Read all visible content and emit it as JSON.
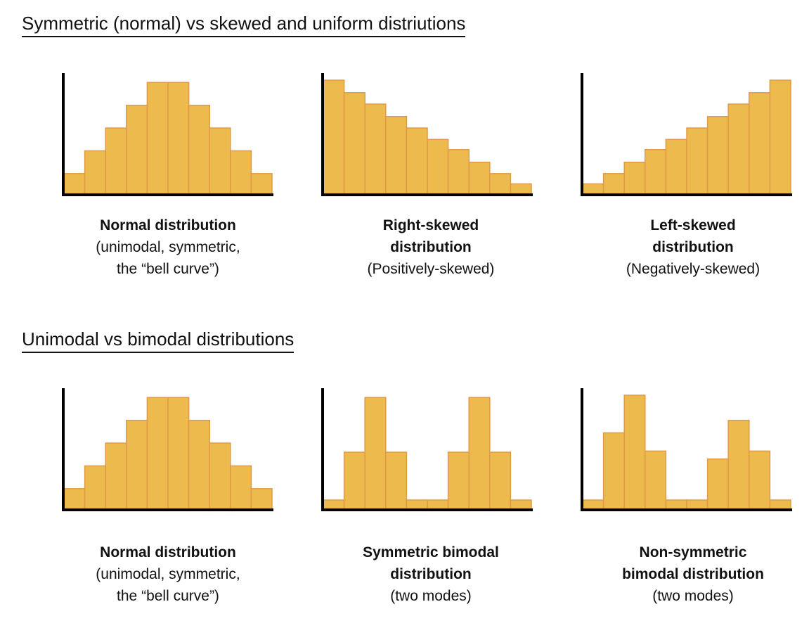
{
  "sections": [
    {
      "title": "Symmetric (normal) vs skewed and uniform distriutions"
    },
    {
      "title": "Unimodal vs bimodal distributions"
    }
  ],
  "bar_color": "#EDBA4E",
  "bar_stroke": "#E09A46",
  "axis_color": "#000000",
  "chart_data": [
    {
      "type": "bar",
      "title": "",
      "caption": {
        "bold": "Normal distribution",
        "sub": "(unimodal, symmetric,\nthe “bell curve”)"
      },
      "values": [
        18,
        38,
        58,
        78,
        98,
        98,
        78,
        58,
        38,
        18
      ],
      "ylim": [
        0,
        100
      ],
      "axes_ticks": false,
      "grid": false
    },
    {
      "type": "bar",
      "title": "",
      "caption": {
        "bold": "Right-skewed\ndistribution",
        "sub": "(Positively-skewed)"
      },
      "values": [
        100,
        89,
        79,
        68,
        58,
        48,
        39,
        28,
        18,
        9
      ],
      "ylim": [
        0,
        100
      ],
      "axes_ticks": false,
      "grid": false
    },
    {
      "type": "bar",
      "title": "",
      "caption": {
        "bold": "Left-skewed\ndistribution",
        "sub": "(Negatively-skewed)"
      },
      "values": [
        9,
        18,
        28,
        39,
        48,
        58,
        68,
        79,
        89,
        100
      ],
      "ylim": [
        0,
        100
      ],
      "axes_ticks": false,
      "grid": false
    },
    {
      "type": "bar",
      "title": "",
      "caption": {
        "bold": "Normal distribution",
        "sub": "(unimodal, symmetric,\nthe “bell curve”)"
      },
      "values": [
        18,
        38,
        58,
        78,
        98,
        98,
        78,
        58,
        38,
        18
      ],
      "ylim": [
        0,
        100
      ],
      "axes_ticks": false,
      "grid": false
    },
    {
      "type": "bar",
      "title": "",
      "caption": {
        "bold": "Symmetric bimodal\ndistribution",
        "sub": "(two modes)"
      },
      "values": [
        8,
        50,
        98,
        50,
        8,
        8,
        50,
        98,
        50,
        8
      ],
      "ylim": [
        0,
        100
      ],
      "axes_ticks": false,
      "grid": false
    },
    {
      "type": "bar",
      "title": "",
      "caption": {
        "bold": "Non-symmetric\nbimodal distribution",
        "sub": "(two modes)"
      },
      "values": [
        8,
        67,
        100,
        51,
        8,
        8,
        44,
        78,
        51,
        8
      ],
      "ylim": [
        0,
        100
      ],
      "axes_ticks": false,
      "grid": false
    }
  ]
}
